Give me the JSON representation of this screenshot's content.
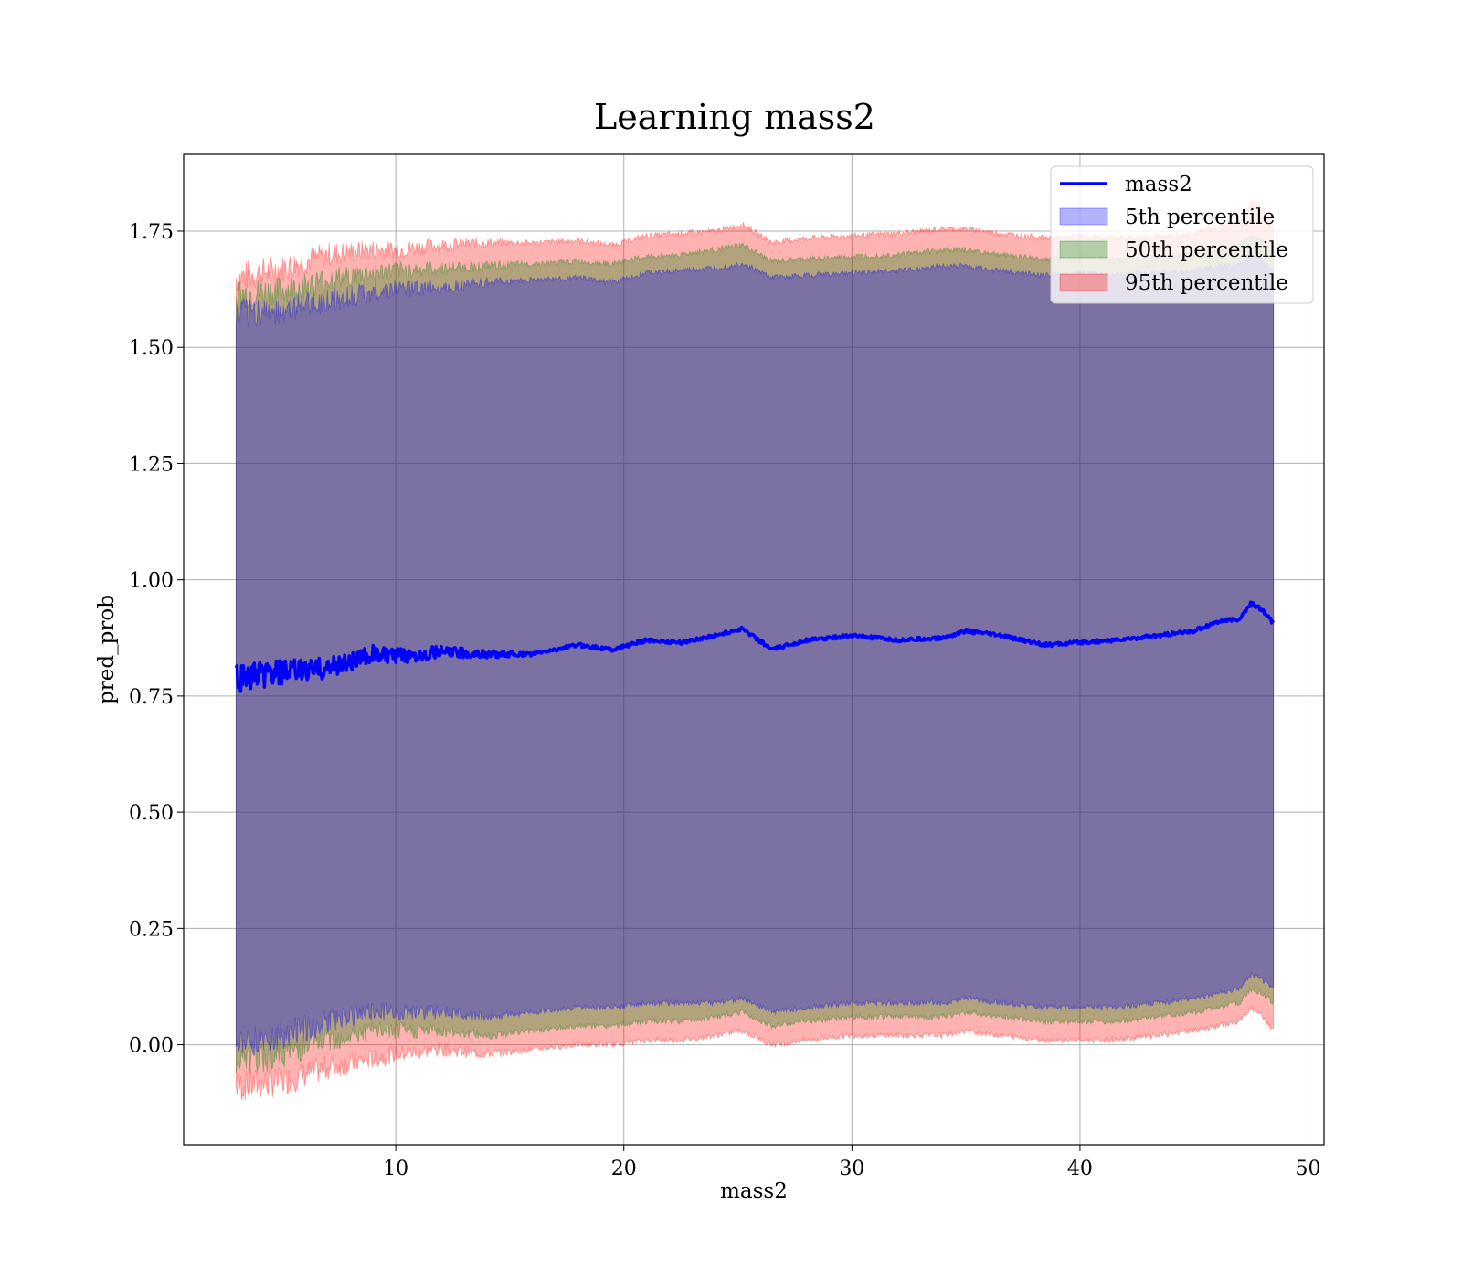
{
  "chart_data": {
    "type": "area",
    "title": "Learning mass2",
    "xlabel": "mass2",
    "ylabel": "pred_prob",
    "xlim": [
      0.7,
      50.7
    ],
    "ylim": [
      -0.215,
      1.915
    ],
    "xticks": [
      10,
      20,
      30,
      40,
      50
    ],
    "xtick_labels": [
      "10",
      "20",
      "30",
      "40",
      "50"
    ],
    "yticks": [
      0.0,
      0.25,
      0.5,
      0.75,
      1.0,
      1.25,
      1.5,
      1.75
    ],
    "ytick_labels": [
      "0.00",
      "0.25",
      "0.50",
      "0.75",
      "1.00",
      "1.25",
      "1.50",
      "1.75"
    ],
    "grid": true,
    "legend_position": "top-right",
    "legend": [
      "mass2",
      "5th percentile",
      "50th percentile",
      "95th percentile"
    ],
    "colors": {
      "line": "#0000ff",
      "band_5": "#0000ff",
      "band_50": "#008000",
      "band_95": "#ff0000"
    },
    "x": [
      3.0,
      5.0,
      7.0,
      9.0,
      10.0,
      12.0,
      14.0,
      16.0,
      18.0,
      19.5,
      21.0,
      22.5,
      24.0,
      25.2,
      26.5,
      28.0,
      30.0,
      32.0,
      34.0,
      35.0,
      36.5,
      38.5,
      40.0,
      41.5,
      43.5,
      45.0,
      46.0,
      47.0,
      47.5,
      48.0,
      48.5
    ],
    "series": [
      {
        "name": "mass2",
        "values": [
          0.79,
          0.8,
          0.81,
          0.84,
          0.835,
          0.845,
          0.84,
          0.84,
          0.86,
          0.85,
          0.87,
          0.865,
          0.88,
          0.895,
          0.85,
          0.87,
          0.88,
          0.87,
          0.875,
          0.89,
          0.88,
          0.86,
          0.865,
          0.87,
          0.88,
          0.89,
          0.91,
          0.915,
          0.95,
          0.935,
          0.905
        ]
      },
      {
        "name": "5th percentile",
        "lower": [
          0.0,
          0.02,
          0.05,
          0.07,
          0.07,
          0.07,
          0.06,
          0.07,
          0.08,
          0.08,
          0.09,
          0.09,
          0.09,
          0.1,
          0.07,
          0.08,
          0.09,
          0.09,
          0.09,
          0.1,
          0.09,
          0.08,
          0.08,
          0.08,
          0.09,
          0.1,
          0.11,
          0.12,
          0.15,
          0.14,
          0.12
        ],
        "upper": [
          1.57,
          1.58,
          1.6,
          1.62,
          1.625,
          1.63,
          1.64,
          1.645,
          1.65,
          1.64,
          1.66,
          1.665,
          1.67,
          1.68,
          1.65,
          1.655,
          1.66,
          1.665,
          1.675,
          1.675,
          1.665,
          1.655,
          1.66,
          1.655,
          1.66,
          1.665,
          1.675,
          1.68,
          1.7,
          1.69,
          1.66
        ]
      },
      {
        "name": "50th percentile",
        "lower": [
          -0.04,
          -0.02,
          0.01,
          0.03,
          0.03,
          0.03,
          0.02,
          0.03,
          0.04,
          0.04,
          0.05,
          0.05,
          0.06,
          0.07,
          0.04,
          0.05,
          0.06,
          0.06,
          0.06,
          0.07,
          0.06,
          0.05,
          0.05,
          0.05,
          0.06,
          0.07,
          0.08,
          0.09,
          0.12,
          0.11,
          0.09
        ],
        "upper": [
          1.61,
          1.62,
          1.645,
          1.66,
          1.665,
          1.67,
          1.675,
          1.68,
          1.685,
          1.68,
          1.695,
          1.7,
          1.71,
          1.72,
          1.685,
          1.69,
          1.695,
          1.7,
          1.71,
          1.71,
          1.7,
          1.69,
          1.695,
          1.69,
          1.695,
          1.7,
          1.71,
          1.72,
          1.74,
          1.73,
          1.7
        ]
      },
      {
        "name": "95th percentile",
        "lower": [
          -0.09,
          -0.08,
          -0.05,
          -0.03,
          -0.02,
          -0.01,
          -0.02,
          -0.01,
          0.0,
          0.0,
          0.01,
          0.01,
          0.02,
          0.03,
          0.0,
          0.01,
          0.02,
          0.02,
          0.02,
          0.03,
          0.02,
          0.01,
          0.01,
          0.01,
          0.02,
          0.03,
          0.04,
          0.05,
          0.08,
          0.06,
          0.03
        ],
        "upper": [
          1.65,
          1.67,
          1.7,
          1.71,
          1.71,
          1.72,
          1.725,
          1.725,
          1.73,
          1.72,
          1.74,
          1.745,
          1.75,
          1.765,
          1.725,
          1.735,
          1.74,
          1.745,
          1.755,
          1.755,
          1.745,
          1.735,
          1.74,
          1.735,
          1.74,
          1.745,
          1.76,
          1.77,
          1.815,
          1.8,
          1.75
        ]
      }
    ]
  }
}
